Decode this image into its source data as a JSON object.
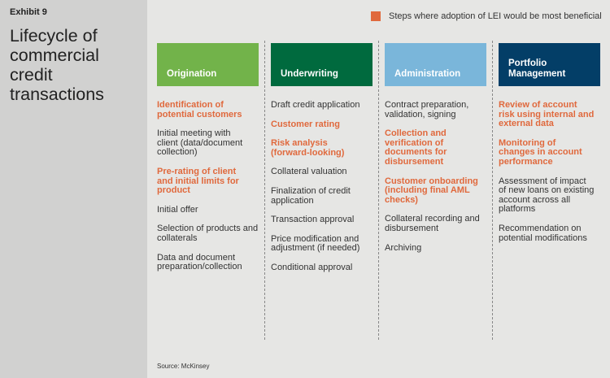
{
  "exhibit": "Exhibit 9",
  "title": "Lifecycle of\ncommercial\ncredit\ntransactions",
  "legend": {
    "label": "Steps where adoption of LEI would be most beneficial",
    "color": "#e0693d"
  },
  "columns": [
    {
      "label": "Origination",
      "color": "#72b34a",
      "items": [
        {
          "text": "Identification of\npotential customers",
          "hl": true
        },
        {
          "text": "Initial meeting with\nclient (data/document\ncollection)",
          "hl": false
        },
        {
          "text": "Pre-rating of client\nand initial limits for\nproduct",
          "hl": true
        },
        {
          "text": "Initial offer",
          "hl": false
        },
        {
          "text": "Selection of products and\ncollaterals",
          "hl": false
        },
        {
          "text": "Data and document\npreparation/collection",
          "hl": false
        }
      ]
    },
    {
      "label": "Underwriting",
      "color": "#006a3e",
      "items": [
        {
          "text": "Draft credit application",
          "hl": false
        },
        {
          "text": "Customer rating",
          "hl": true
        },
        {
          "text": "Risk analysis\n(forward-looking)",
          "hl": true
        },
        {
          "text": "Collateral valuation",
          "hl": false
        },
        {
          "text": "Finalization of credit\napplication",
          "hl": false
        },
        {
          "text": "Transaction approval",
          "hl": false
        },
        {
          "text": "Price modification and\nadjustment (if needed)",
          "hl": false
        },
        {
          "text": "Conditional approval",
          "hl": false
        }
      ]
    },
    {
      "label": "Administration",
      "color": "#7ab6da",
      "items": [
        {
          "text": "Contract preparation,\nvalidation, signing",
          "hl": false
        },
        {
          "text": "Collection and\nverification of\ndocuments for\ndisbursement",
          "hl": true
        },
        {
          "text": "Customer onboarding\n(including final AML\nchecks)",
          "hl": true
        },
        {
          "text": "Collateral recording and\ndisbursement",
          "hl": false
        },
        {
          "text": "Archiving",
          "hl": false
        }
      ]
    },
    {
      "label": "Portfolio\nManagement",
      "color": "#033e67",
      "items": [
        {
          "text": "Review of account\nrisk using internal and\nexternal data",
          "hl": true
        },
        {
          "text": "Monitoring of\nchanges in account\nperformance",
          "hl": true
        },
        {
          "text": "Assessment of impact\nof new loans on existing\naccount across all\nplatforms",
          "hl": false
        },
        {
          "text": "Recommendation on\npotential modifications",
          "hl": false
        }
      ]
    }
  ],
  "source": "Source: McKinsey"
}
